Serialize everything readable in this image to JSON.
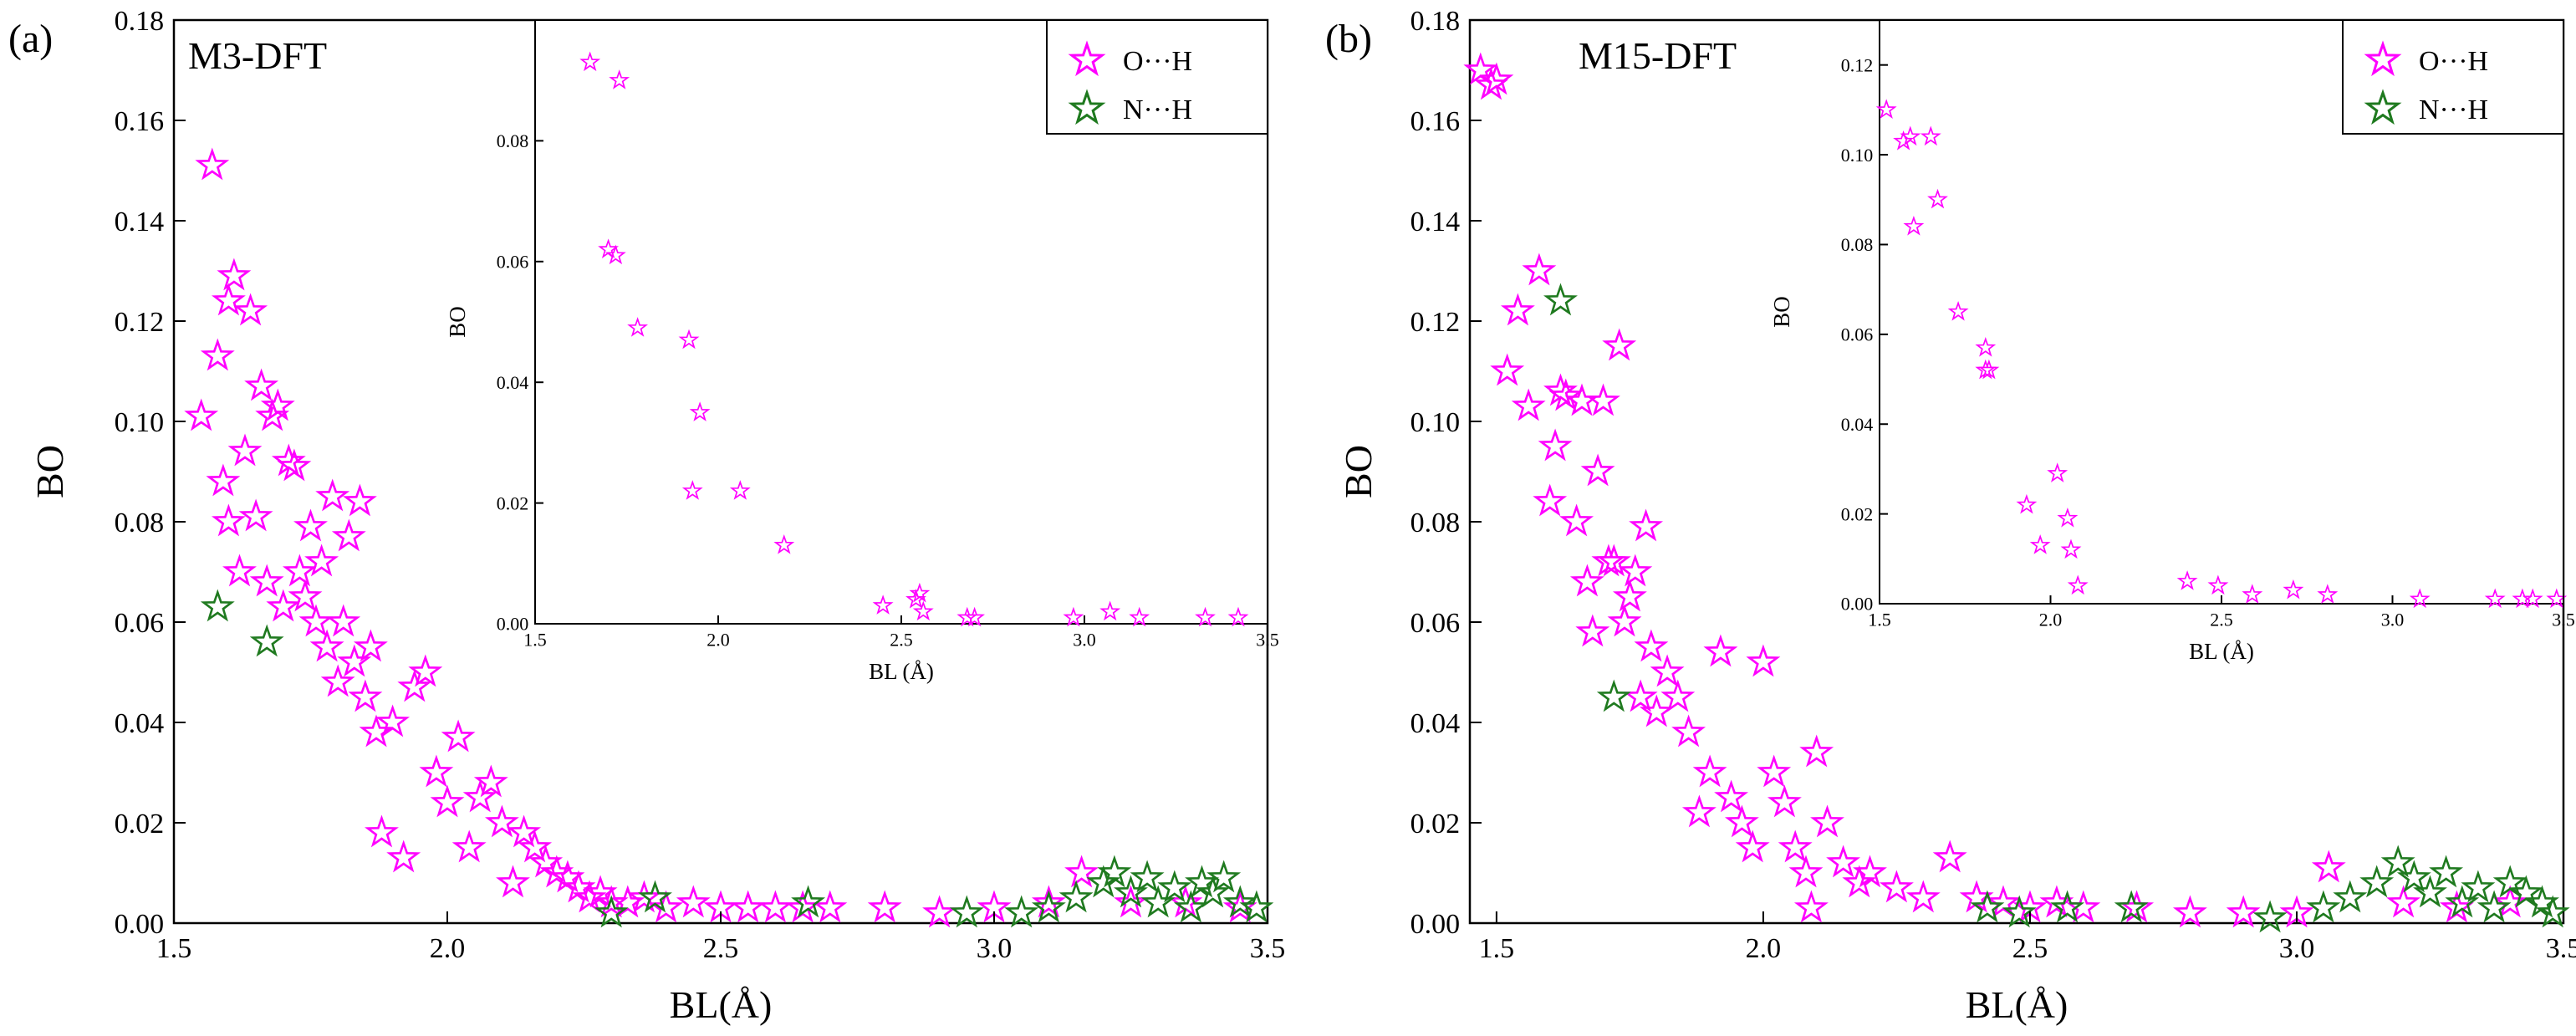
{
  "figure": {
    "panel_label_a": "(a)",
    "panel_label_b": "(b)"
  },
  "legend": {
    "oh_label": "O···H",
    "nh_label": "N···H"
  },
  "colors": {
    "oh": "#ff00ff",
    "nh": "#1f7a1f",
    "axis": "#000000"
  },
  "chart_data": [
    {
      "id": "a",
      "type": "scatter",
      "title": "M3-DFT",
      "xlabel": "BL(Å)",
      "ylabel": "BO",
      "xlim": [
        1.5,
        3.5
      ],
      "ylim": [
        0.0,
        0.18
      ],
      "xticks": [
        "1.5",
        "2.0",
        "2.5",
        "3.0",
        "3.5"
      ],
      "yticks": [
        "0.00",
        "0.02",
        "0.04",
        "0.06",
        "0.08",
        "0.10",
        "0.12",
        "0.14",
        "0.16",
        "0.18"
      ],
      "series": [
        {
          "name": "O···H",
          "x": [
            1.55,
            1.57,
            1.58,
            1.59,
            1.6,
            1.6,
            1.61,
            1.62,
            1.63,
            1.64,
            1.65,
            1.66,
            1.67,
            1.68,
            1.69,
            1.7,
            1.71,
            1.72,
            1.73,
            1.74,
            1.75,
            1.76,
            1.77,
            1.78,
            1.79,
            1.8,
            1.81,
            1.82,
            1.83,
            1.84,
            1.85,
            1.86,
            1.87,
            1.88,
            1.9,
            1.92,
            1.94,
            1.96,
            1.98,
            2.0,
            2.02,
            2.04,
            2.06,
            2.08,
            2.1,
            2.12,
            2.14,
            2.16,
            2.18,
            2.2,
            2.22,
            2.24,
            2.26,
            2.28,
            2.3,
            2.33,
            2.36,
            2.4,
            2.45,
            2.5,
            2.55,
            2.6,
            2.65,
            2.7,
            2.8,
            2.9,
            3.0,
            3.1,
            3.16,
            3.25,
            3.35,
            3.45
          ],
          "y": [
            0.101,
            0.151,
            0.113,
            0.088,
            0.124,
            0.08,
            0.129,
            0.07,
            0.094,
            0.122,
            0.081,
            0.107,
            0.068,
            0.101,
            0.103,
            0.063,
            0.092,
            0.091,
            0.07,
            0.065,
            0.079,
            0.06,
            0.072,
            0.055,
            0.085,
            0.048,
            0.06,
            0.077,
            0.052,
            0.084,
            0.045,
            0.055,
            0.038,
            0.018,
            0.04,
            0.013,
            0.047,
            0.05,
            0.03,
            0.024,
            0.037,
            0.015,
            0.025,
            0.028,
            0.02,
            0.008,
            0.018,
            0.015,
            0.012,
            0.01,
            0.009,
            0.007,
            0.005,
            0.006,
            0.004,
            0.004,
            0.005,
            0.003,
            0.004,
            0.003,
            0.003,
            0.003,
            0.003,
            0.003,
            0.003,
            0.002,
            0.003,
            0.004,
            0.01,
            0.004,
            0.004,
            0.003
          ]
        },
        {
          "name": "N···H",
          "x": [
            1.58,
            1.67,
            2.3,
            2.38,
            2.66,
            2.95,
            3.05,
            3.1,
            3.15,
            3.2,
            3.22,
            3.25,
            3.28,
            3.3,
            3.33,
            3.36,
            3.38,
            3.4,
            3.42,
            3.45,
            3.48
          ],
          "y": [
            0.063,
            0.056,
            0.002,
            0.005,
            0.004,
            0.002,
            0.002,
            0.003,
            0.005,
            0.008,
            0.01,
            0.006,
            0.009,
            0.004,
            0.007,
            0.003,
            0.008,
            0.006,
            0.009,
            0.004,
            0.003
          ]
        }
      ],
      "inset": {
        "type": "scatter",
        "xlabel": "BL (Å)",
        "ylabel": "BO",
        "xlim": [
          1.5,
          3.5
        ],
        "ylim": [
          0.0,
          0.1
        ],
        "xticks": [
          "1.5",
          "2.0",
          "2.5",
          "3.0",
          "3.5"
        ],
        "yticks": [
          "0.00",
          "0.02",
          "0.04",
          "0.06",
          "0.08"
        ],
        "series": [
          {
            "name": "O···H",
            "x": [
              1.65,
              1.7,
              1.72,
              1.73,
              1.78,
              1.92,
              1.93,
              1.95,
              2.06,
              2.18,
              2.45,
              2.54,
              2.55,
              2.56,
              2.68,
              2.7,
              2.97,
              3.07,
              3.15,
              3.33,
              3.42
            ],
            "y": [
              0.093,
              0.062,
              0.061,
              0.09,
              0.049,
              0.047,
              0.022,
              0.035,
              0.022,
              0.013,
              0.003,
              0.004,
              0.005,
              0.002,
              0.001,
              0.001,
              0.001,
              0.002,
              0.001,
              0.001,
              0.001
            ]
          }
        ]
      }
    },
    {
      "id": "b",
      "type": "scatter",
      "title": "M15-DFT",
      "xlabel": "BL(Å)",
      "ylabel": "BO",
      "xlim": [
        1.45,
        3.5
      ],
      "ylim": [
        0.0,
        0.18
      ],
      "xticks": [
        "1.5",
        "2.0",
        "2.5",
        "3.0",
        "3.5"
      ],
      "yticks": [
        "0.00",
        "0.02",
        "0.04",
        "0.06",
        "0.08",
        "0.10",
        "0.12",
        "0.14",
        "0.16",
        "0.18"
      ],
      "series": [
        {
          "name": "O···H",
          "x": [
            1.47,
            1.49,
            1.5,
            1.52,
            1.54,
            1.56,
            1.58,
            1.6,
            1.61,
            1.62,
            1.63,
            1.65,
            1.66,
            1.67,
            1.68,
            1.69,
            1.7,
            1.71,
            1.72,
            1.73,
            1.74,
            1.75,
            1.76,
            1.77,
            1.78,
            1.79,
            1.8,
            1.82,
            1.84,
            1.86,
            1.88,
            1.9,
            1.92,
            1.94,
            1.96,
            1.98,
            2.0,
            2.02,
            2.04,
            2.06,
            2.08,
            2.09,
            2.1,
            2.12,
            2.15,
            2.18,
            2.2,
            2.25,
            2.3,
            2.35,
            2.4,
            2.45,
            2.5,
            2.55,
            2.6,
            2.7,
            2.8,
            2.9,
            3.0,
            3.06,
            3.2,
            3.3,
            3.4
          ],
          "y": [
            0.17,
            0.167,
            0.168,
            0.11,
            0.122,
            0.103,
            0.13,
            0.084,
            0.095,
            0.106,
            0.105,
            0.08,
            0.104,
            0.068,
            0.058,
            0.09,
            0.104,
            0.072,
            0.072,
            0.115,
            0.06,
            0.065,
            0.07,
            0.045,
            0.079,
            0.055,
            0.042,
            0.05,
            0.045,
            0.038,
            0.022,
            0.03,
            0.054,
            0.025,
            0.02,
            0.015,
            0.052,
            0.03,
            0.024,
            0.015,
            0.01,
            0.003,
            0.034,
            0.02,
            0.012,
            0.008,
            0.01,
            0.007,
            0.005,
            0.013,
            0.005,
            0.004,
            0.003,
            0.004,
            0.003,
            0.003,
            0.002,
            0.002,
            0.002,
            0.011,
            0.004,
            0.003,
            0.004
          ]
        },
        {
          "name": "N···H",
          "x": [
            1.62,
            1.72,
            2.42,
            2.48,
            2.57,
            2.69,
            2.95,
            3.05,
            3.1,
            3.15,
            3.19,
            3.22,
            3.25,
            3.28,
            3.31,
            3.34,
            3.37,
            3.4,
            3.43,
            3.46,
            3.48
          ],
          "y": [
            0.124,
            0.045,
            0.003,
            0.002,
            0.003,
            0.003,
            0.001,
            0.003,
            0.005,
            0.008,
            0.012,
            0.009,
            0.006,
            0.01,
            0.004,
            0.007,
            0.003,
            0.008,
            0.006,
            0.004,
            0.002
          ]
        }
      ],
      "inset": {
        "type": "scatter",
        "xlabel": "BL (Å)",
        "ylabel": "BO",
        "xlim": [
          1.5,
          3.5
        ],
        "ylim": [
          0.0,
          0.13
        ],
        "xticks": [
          "1.5",
          "2.0",
          "2.5",
          "3.0",
          "3.5"
        ],
        "yticks": [
          "0.00",
          "0.02",
          "0.04",
          "0.06",
          "0.08",
          "0.10",
          "0.12"
        ],
        "series": [
          {
            "name": "O···H",
            "x": [
              1.52,
              1.57,
              1.59,
              1.6,
              1.65,
              1.67,
              1.73,
              1.81,
              1.82,
              1.81,
              1.93,
              1.97,
              2.02,
              2.05,
              2.06,
              2.08,
              2.4,
              2.49,
              2.59,
              2.71,
              2.81,
              3.08,
              3.3,
              3.38,
              3.41,
              3.48
            ],
            "y": [
              0.11,
              0.103,
              0.104,
              0.084,
              0.104,
              0.09,
              0.065,
              0.057,
              0.052,
              0.052,
              0.022,
              0.013,
              0.029,
              0.019,
              0.012,
              0.004,
              0.005,
              0.004,
              0.002,
              0.003,
              0.002,
              0.001,
              0.001,
              0.001,
              0.001,
              0.001
            ]
          }
        ]
      }
    }
  ]
}
